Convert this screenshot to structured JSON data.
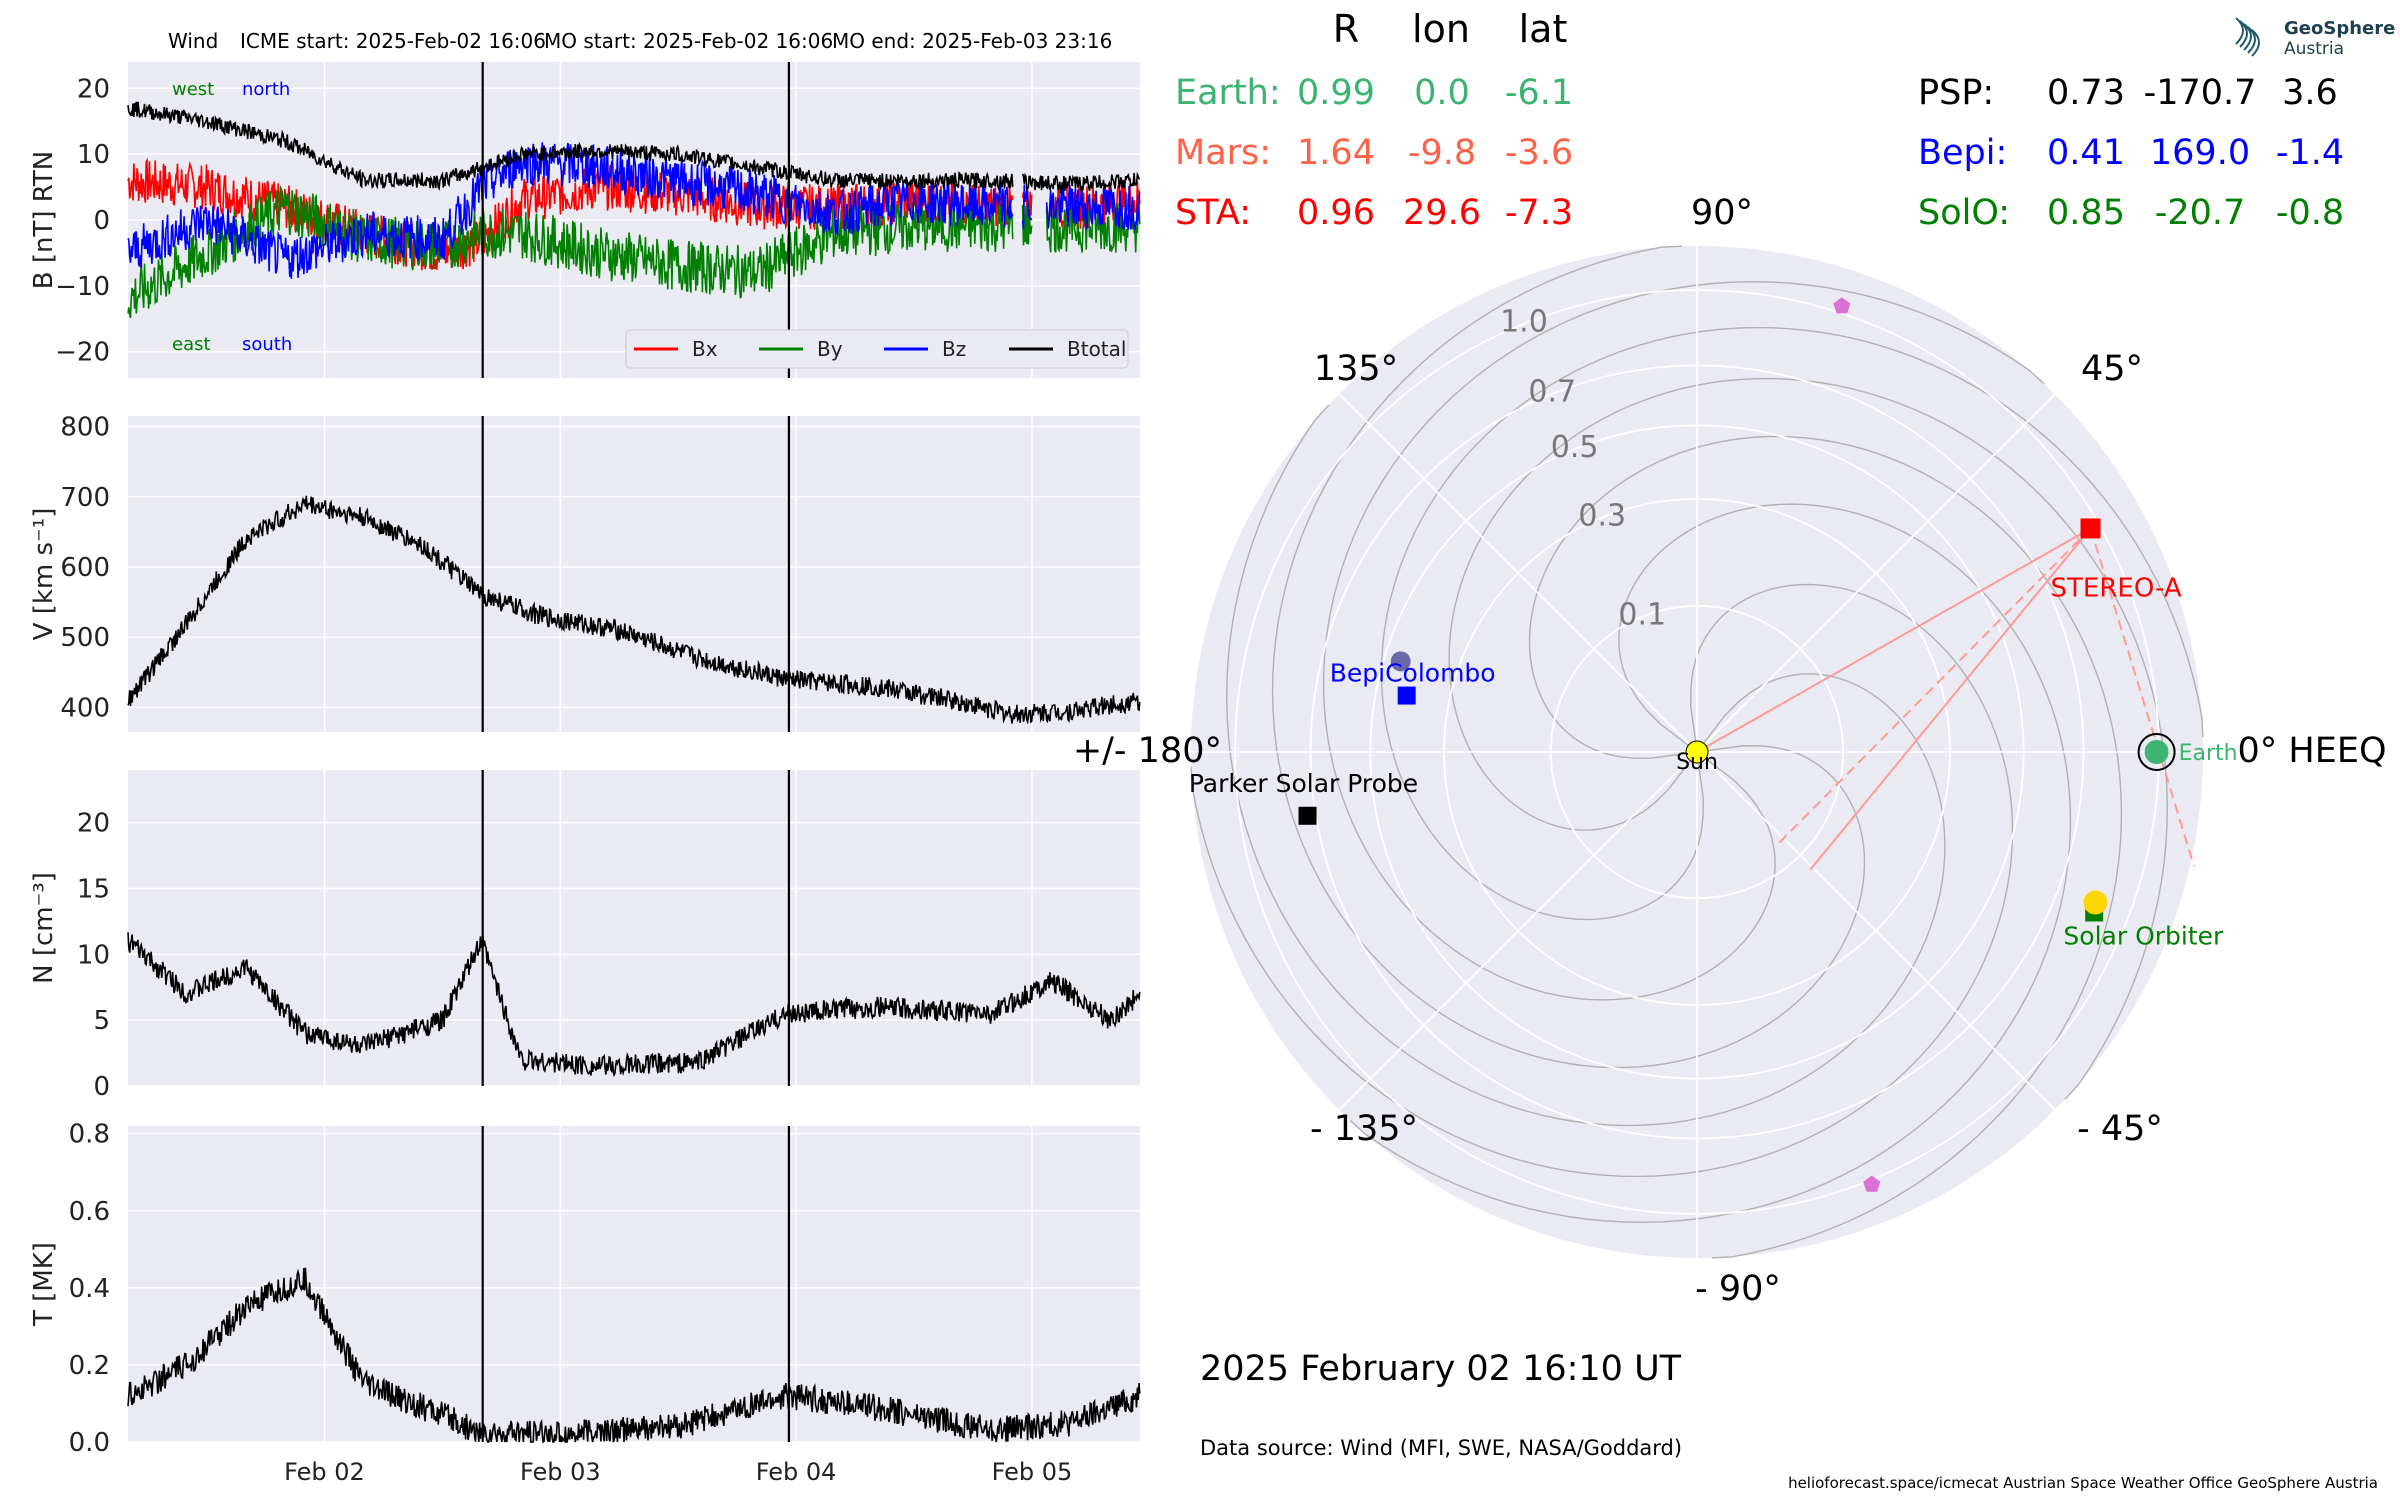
{
  "header": {
    "spacecraft": "Wind",
    "icme_start": "ICME start: 2025-Feb-02 16:06",
    "mo_start": "MO start: 2025-Feb-02 16:06",
    "mo_end": "MO end: 2025-Feb-03 23:16"
  },
  "logo": {
    "line1": "GeoSphere",
    "line2": "Austria"
  },
  "colors": {
    "panel_bg": "#eaeaf2",
    "grid": "#ffffff",
    "bx": "#ff0000",
    "by": "#008000",
    "bz": "#0000ff",
    "btotal": "#000000",
    "earth": "#3cb371",
    "mars": "#ff6347",
    "sta": "#ff0000",
    "psp": "#000000",
    "bepi": "#0000ff",
    "solo": "#008000",
    "sun": "#ffff00",
    "solo_marker": "#ffd700",
    "pentagon": "#da70d6",
    "sta_lines": "#ff9999",
    "spiral": "#b0b0b0"
  },
  "chart_data": [
    {
      "type": "line",
      "ylabel": "B [nT] RTN",
      "ylim": [
        -24,
        24
      ],
      "yticks": [
        "20",
        "10",
        "0",
        "−10",
        "−20"
      ],
      "ytick_values": [
        20,
        10,
        0,
        -10,
        -20
      ],
      "xrange_days": [
        "2025-02-01 04:00",
        "2025-02-05 11:00"
      ],
      "xticks": [
        "Feb 02",
        "Feb 03",
        "Feb 04",
        "Feb 05"
      ],
      "annotations": {
        "west": "west",
        "north": "north",
        "east": "east",
        "south": "south"
      },
      "legend": {
        "position": "lower right",
        "entries": [
          "Bx",
          "By",
          "Bz",
          "Btotal"
        ]
      },
      "vlines": [
        "2025-02-02 16:06",
        "2025-02-03 23:16"
      ],
      "series": [
        {
          "name": "Bx",
          "x": [
            "02-01 04:00",
            "02-01 12:00",
            "02-01 20:00",
            "02-02 04:00",
            "02-02 12:00",
            "02-02 16:06",
            "02-02 20:00",
            "02-03 04:00",
            "02-03 12:00",
            "02-03 20:00",
            "02-04 04:00",
            "02-04 12:00",
            "02-04 20:00",
            "02-05 04:00",
            "02-05 11:00"
          ],
          "values": [
            6,
            5,
            2,
            -2,
            -5,
            -3,
            3,
            5,
            4,
            2,
            2,
            3,
            2,
            2,
            3
          ]
        },
        {
          "name": "By",
          "x": [
            "02-01 04:00",
            "02-01 12:00",
            "02-01 20:00",
            "02-02 04:00",
            "02-02 12:00",
            "02-02 16:06",
            "02-02 20:00",
            "02-03 04:00",
            "02-03 12:00",
            "02-03 20:00",
            "02-04 04:00",
            "02-04 12:00",
            "02-04 20:00",
            "02-05 04:00",
            "02-05 11:00"
          ],
          "values": [
            -12,
            -5,
            2,
            -3,
            -4,
            -2,
            -2,
            -5,
            -7,
            -8,
            -2,
            -1,
            -1,
            -1,
            -1
          ]
        },
        {
          "name": "Bz",
          "x": [
            "02-01 04:00",
            "02-01 12:00",
            "02-01 20:00",
            "02-02 04:00",
            "02-02 12:00",
            "02-02 16:06",
            "02-02 20:00",
            "02-03 04:00",
            "02-03 12:00",
            "02-03 20:00",
            "02-04 04:00",
            "02-04 12:00",
            "02-04 20:00",
            "02-05 04:00",
            "02-05 11:00"
          ],
          "values": [
            -5,
            0,
            -6,
            -2,
            -3,
            5,
            9,
            8,
            6,
            4,
            1,
            3,
            2,
            2,
            2
          ]
        },
        {
          "name": "Btotal",
          "x": [
            "02-01 04:00",
            "02-01 12:00",
            "02-01 20:00",
            "02-02 04:00",
            "02-02 12:00",
            "02-02 16:06",
            "02-02 20:00",
            "02-03 04:00",
            "02-03 12:00",
            "02-03 20:00",
            "02-04 04:00",
            "02-04 12:00",
            "02-04 20:00",
            "02-05 04:00",
            "02-05 11:00"
          ],
          "values": [
            17,
            15,
            12,
            6,
            6,
            8,
            10,
            10.5,
            10,
            8,
            6,
            6,
            6,
            5.5,
            6
          ]
        }
      ]
    },
    {
      "type": "line",
      "ylabel": "V [km s⁻¹]",
      "ylim": [
        365,
        815
      ],
      "yticks": [
        "800",
        "700",
        "600",
        "500",
        "400"
      ],
      "ytick_values": [
        800,
        700,
        600,
        500,
        400
      ],
      "xticks": [
        "Feb 02",
        "Feb 03",
        "Feb 04",
        "Feb 05"
      ],
      "vlines": [
        "2025-02-02 16:06",
        "2025-02-03 23:16"
      ],
      "series": [
        {
          "name": "",
          "x": [
            "02-01 04:00",
            "02-01 10:00",
            "02-01 16:00",
            "02-01 22:00",
            "02-02 04:00",
            "02-02 10:00",
            "02-02 16:00",
            "02-02 22:00",
            "02-03 06:00",
            "02-03 14:00",
            "02-03 23:00",
            "02-04 08:00",
            "02-04 16:00",
            "02-04 22:00",
            "02-05 04:00",
            "02-05 11:00"
          ],
          "values": [
            410,
            520,
            640,
            690,
            670,
            630,
            560,
            530,
            510,
            470,
            440,
            430,
            410,
            390,
            395,
            410
          ]
        }
      ]
    },
    {
      "type": "line",
      "ylabel": "N [cm⁻³]",
      "ylim": [
        0,
        24
      ],
      "yticks": [
        "20",
        "15",
        "10",
        "5",
        "0"
      ],
      "ytick_values": [
        20,
        15,
        10,
        5,
        0
      ],
      "xticks": [
        "Feb 02",
        "Feb 03",
        "Feb 04",
        "Feb 05"
      ],
      "vlines": [
        "2025-02-02 16:06",
        "2025-02-03 23:16"
      ],
      "series": [
        {
          "name": "",
          "x": [
            "02-01 04:00",
            "02-01 10:00",
            "02-01 16:00",
            "02-01 22:00",
            "02-02 04:00",
            "02-02 12:00",
            "02-02 16:00",
            "02-02 20:00",
            "02-03 04:00",
            "02-03 14:00",
            "02-03 23:00",
            "02-04 08:00",
            "02-04 20:00",
            "02-05 02:00",
            "02-05 08:00",
            "02-05 11:00"
          ],
          "values": [
            11,
            7,
            9,
            4,
            3,
            5,
            11,
            2,
            1.5,
            1.8,
            5.5,
            6,
            5.5,
            8,
            5,
            7
          ]
        }
      ]
    },
    {
      "type": "line",
      "ylabel": "T [MK]",
      "ylim": [
        0,
        0.82
      ],
      "yticks": [
        "0.8",
        "0.6",
        "0.4",
        "0.2",
        "0.0"
      ],
      "ytick_values": [
        0.8,
        0.6,
        0.4,
        0.2,
        0.0
      ],
      "xticks": [
        "Feb 02",
        "Feb 03",
        "Feb 04",
        "Feb 05"
      ],
      "vlines": [
        "2025-02-02 16:06",
        "2025-02-03 23:16"
      ],
      "series": [
        {
          "name": "",
          "x": [
            "02-01 04:00",
            "02-01 10:00",
            "02-01 16:00",
            "02-01 22:00",
            "02-02 04:00",
            "02-02 12:00",
            "02-02 16:00",
            "02-03 00:00",
            "02-03 12:00",
            "02-03 23:00",
            "02-04 08:00",
            "02-04 20:00",
            "02-05 04:00",
            "02-05 11:00"
          ],
          "values": [
            0.12,
            0.2,
            0.35,
            0.42,
            0.15,
            0.07,
            0.02,
            0.02,
            0.04,
            0.12,
            0.09,
            0.03,
            0.05,
            0.12
          ]
        }
      ]
    },
    {
      "type": "polar",
      "coordinate_system": "HEEQ",
      "radial_ticks": [
        "0.1",
        "0.3",
        "0.5",
        "0.7",
        "1.0"
      ],
      "radial_tick_values": [
        0.1,
        0.3,
        0.5,
        0.7,
        1.0
      ],
      "angle_labels": {
        "0": "0° HEEQ",
        "45": "45°",
        "90": "90°",
        "135": "135°",
        "180": "+/- 180°",
        "-135": "- 135°",
        "-90": "- 90°",
        "-45": "- 45°"
      },
      "bodies": [
        {
          "name": "Sun",
          "r": 0.0,
          "lon": 0
        },
        {
          "name": "Earth",
          "r": 0.99,
          "lon": 0.0
        },
        {
          "name": "STEREO-A",
          "r": 0.96,
          "lon": 29.6
        },
        {
          "name": "BepiColombo",
          "r": 0.41,
          "lon": 169.0
        },
        {
          "name": "Parker Solar Probe",
          "r": 0.73,
          "lon": -170.7
        },
        {
          "name": "Solar Orbiter",
          "r": 0.85,
          "lon": -20.7
        }
      ],
      "unlabeled_markers": [
        {
          "marker": "mars_square",
          "r": 0.86,
          "lon": -22
        },
        {
          "marker": "pentagon",
          "r": 1.03,
          "lon": 72
        },
        {
          "marker": "pentagon",
          "r": 1.02,
          "lon": -68
        },
        {
          "marker": "bepi_circle",
          "r": 0.45,
          "lon": 163
        }
      ]
    }
  ],
  "positions_table": {
    "headers": [
      "R",
      "lon",
      "lat"
    ],
    "left": [
      {
        "label": "Earth:",
        "r": "0.99",
        "lon": "0.0",
        "lat": "-6.1"
      },
      {
        "label": "Mars:",
        "r": "1.64",
        "lon": "-9.8",
        "lat": "-3.6"
      },
      {
        "label": "STA:",
        "r": "0.96",
        "lon": "29.6",
        "lat": "-7.3"
      }
    ],
    "right": [
      {
        "label": "PSP:",
        "r": "0.73",
        "lon": "-170.7",
        "lat": "3.6"
      },
      {
        "label": "Bepi:",
        "r": "0.41",
        "lon": "169.0",
        "lat": "-1.4"
      },
      {
        "label": "SolO:",
        "r": "0.85",
        "lon": "-20.7",
        "lat": "-0.8"
      }
    ]
  },
  "footer": {
    "date": "2025 February 02  16:10 UT",
    "source": "Data source: Wind (MFI, SWE, NASA/Goddard)",
    "credits": "helioforecast.space/icmecat   Austrian Space Weather Office   GeoSphere Austria"
  }
}
